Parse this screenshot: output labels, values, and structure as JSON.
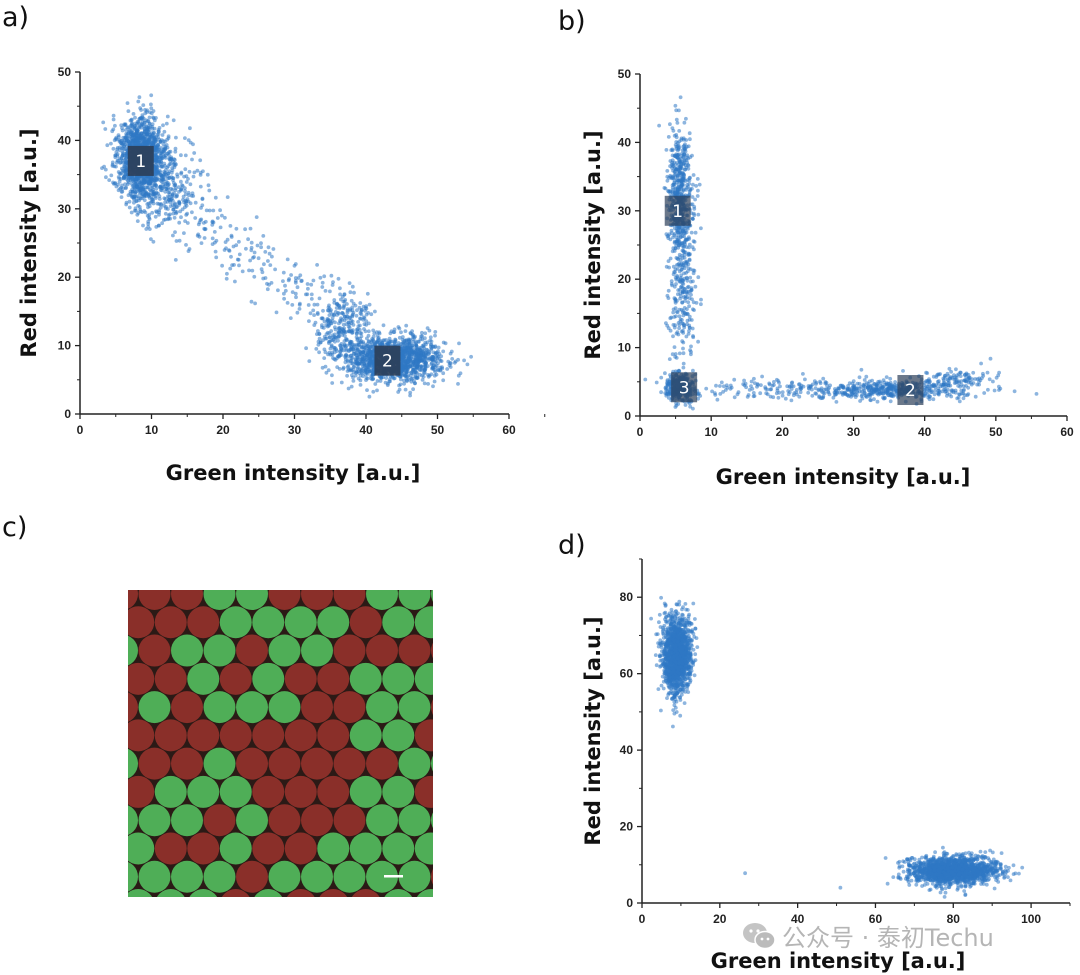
{
  "panel_labels": [
    "a)",
    "b)",
    "c)",
    "d)"
  ],
  "watermark": {
    "text": "公众号 · 泰初Techu",
    "icon": "wechat-icon"
  },
  "colors": {
    "point": "#2f78c4",
    "cluster_label_bg": "#2c3e58",
    "droplet_green": "#4fae57",
    "droplet_red": "#8a2f29",
    "image_bg": "#2b1a16",
    "scale_bar": "#ffffff"
  },
  "chart_data": [
    {
      "id": "a",
      "type": "scatter",
      "xlabel": "Green intensity [a.u.]",
      "ylabel": "Red intensity [a.u.]",
      "xlim": [
        0,
        60
      ],
      "ylim": [
        0,
        50
      ],
      "xticks": [
        "0",
        "10",
        "20",
        "30",
        "40",
        "50",
        "60"
      ],
      "yticks": [
        "0",
        "10",
        "20",
        "30",
        "40",
        "50"
      ],
      "grid": false,
      "cluster_labels": [
        {
          "text": "1",
          "x": 8.5,
          "y": 37
        },
        {
          "text": "2",
          "x": 43,
          "y": 7.8
        }
      ],
      "point_clusters": [
        {
          "cx": 8.5,
          "cy": 37.5,
          "sx": 1.7,
          "sy": 3.0,
          "n": 1300
        },
        {
          "cx": 12,
          "cy": 33,
          "sx": 2.5,
          "sy": 3,
          "n": 300
        },
        {
          "cx": 44,
          "cy": 8,
          "sx": 3.3,
          "sy": 1.6,
          "n": 1300
        },
        {
          "cx": 37,
          "cy": 12,
          "sx": 2,
          "sy": 3,
          "n": 300
        },
        {
          "from": [
            14,
            30
          ],
          "to": [
            36,
            14
          ],
          "jitter": 2.2,
          "n": 200
        }
      ]
    },
    {
      "id": "b",
      "type": "scatter",
      "xlabel": "Green intensity [a.u.]",
      "ylabel": "Red intensity [a.u.]",
      "xlim": [
        0,
        60
      ],
      "ylim": [
        0,
        50
      ],
      "xticks": [
        "0",
        "10",
        "20",
        "30",
        "40",
        "50",
        "60"
      ],
      "yticks": [
        "0",
        "10",
        "20",
        "30",
        "40",
        "50"
      ],
      "grid": false,
      "cluster_labels": [
        {
          "text": "1",
          "x": 5.3,
          "y": 30
        },
        {
          "text": "2",
          "x": 38,
          "y": 3.8
        },
        {
          "text": "3",
          "x": 6.2,
          "y": 4.2
        }
      ],
      "point_clusters": [
        {
          "cx": 5.6,
          "cy": 32,
          "sx": 0.9,
          "sy": 4.5,
          "n": 500
        },
        {
          "cx": 6,
          "cy": 18,
          "sx": 1,
          "sy": 7,
          "n": 260
        },
        {
          "cx": 5.5,
          "cy": 4.2,
          "sx": 1,
          "sy": 1,
          "n": 300
        },
        {
          "cx": 35,
          "cy": 3.8,
          "sx": 5,
          "sy": 0.7,
          "n": 400
        },
        {
          "cx": 20,
          "cy": 4,
          "sx": 8,
          "sy": 0.8,
          "n": 150
        },
        {
          "cx": 44,
          "cy": 5,
          "sx": 3,
          "sy": 1,
          "n": 150
        }
      ]
    },
    {
      "id": "d",
      "type": "scatter",
      "xlabel": "Green intensity [a.u.]",
      "ylabel": "Red intensity [a.u.]",
      "xlim": [
        0,
        110
      ],
      "ylim": [
        0,
        90
      ],
      "xticks": [
        "0",
        "20",
        "40",
        "60",
        "80",
        "100"
      ],
      "yticks": [
        "0",
        "20",
        "40",
        "60",
        "80"
      ],
      "grid": false,
      "cluster_labels": [],
      "point_clusters": [
        {
          "cx": 9,
          "cy": 65,
          "sx": 1.8,
          "sy": 5,
          "n": 1500
        },
        {
          "cx": 80,
          "cy": 8.5,
          "sx": 5.5,
          "sy": 1.8,
          "n": 1600
        },
        {
          "cx": 26.5,
          "cy": 7.8,
          "sx": 0,
          "sy": 0,
          "n": 1
        },
        {
          "cx": 51,
          "cy": 4,
          "sx": 0,
          "sy": 0,
          "n": 1
        }
      ]
    }
  ]
}
